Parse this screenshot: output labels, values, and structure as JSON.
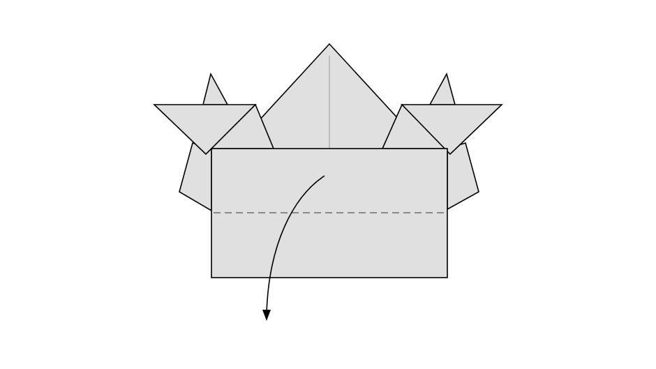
{
  "diagram": {
    "kind": "origami-instruction-step",
    "colors": {
      "paper": "#e0e0e0",
      "stroke": "#000000",
      "crease": "#9a9a9a",
      "dash": "#555555",
      "background": "#ffffff"
    },
    "fold": {
      "line_type": "valley-fold",
      "arrow_direction": "down"
    }
  }
}
